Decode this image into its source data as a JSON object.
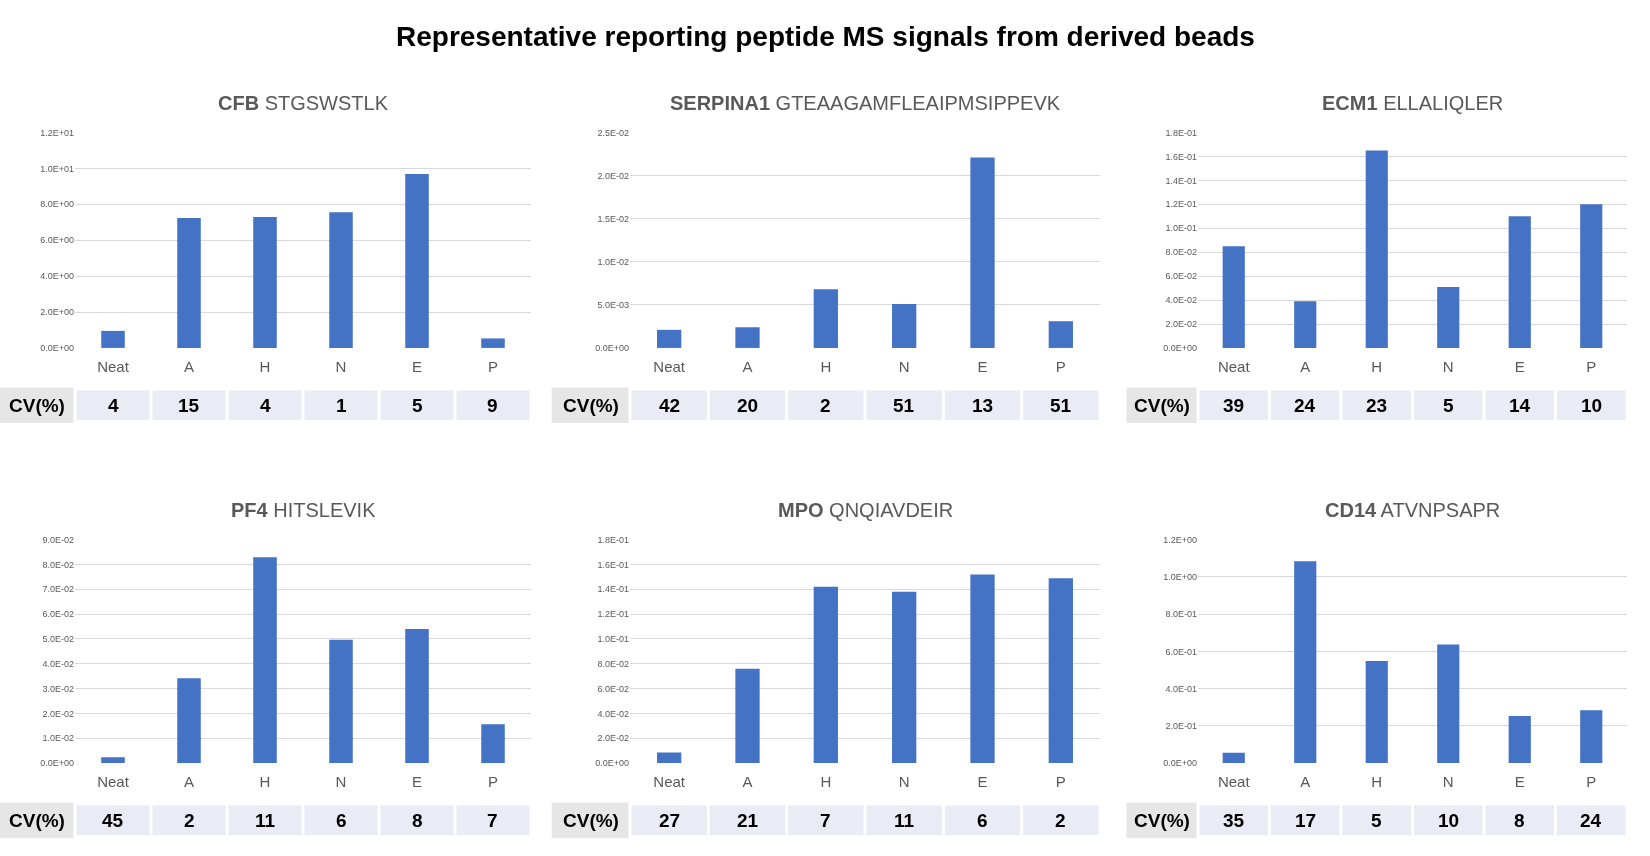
{
  "chart_data": [
    {
      "type": "other",
      "title": "Representative reporting peptide MS signals from derived beads"
    },
    {
      "type": "bar",
      "title": "CFB STGSWSTLK",
      "categories": [
        "Neat",
        "A",
        "H",
        "N",
        "E",
        "P"
      ],
      "values": [
        0.95,
        7.24,
        7.3,
        7.56,
        9.69,
        0.53
      ],
      "color": "#4472c4",
      "ylim": [
        0,
        12
      ],
      "yticks": [
        {
          "value": 0,
          "label": "0.0E+00"
        },
        {
          "value": 2,
          "label": "2.0E+00"
        },
        {
          "value": 4,
          "label": "4.0E+00"
        },
        {
          "value": 6,
          "label": "6.0E+00"
        },
        {
          "value": 8,
          "label": "8.0E+00"
        },
        {
          "value": 10,
          "label": "1.0E+01"
        },
        {
          "value": 12,
          "label": "1.2E+01"
        }
      ],
      "grid": "y",
      "annotations": [
        "CV(%)",
        "4",
        "15",
        "4",
        "1",
        "5",
        "9"
      ]
    },
    {
      "type": "bar",
      "title": "SERPINA1 GTEAAGAMFLEAIPMSIPPEVK",
      "categories": [
        "Neat",
        "A",
        "H",
        "N",
        "E",
        "P"
      ],
      "values": [
        0.0021,
        0.0024,
        0.0068,
        0.0051,
        0.0221,
        0.0031
      ],
      "color": "#4472c4",
      "ylim": [
        0,
        0.025
      ],
      "yticks": [
        {
          "value": 0,
          "label": "0.0E+00"
        },
        {
          "value": 0.005,
          "label": "5.0E-03"
        },
        {
          "value": 0.01,
          "label": "1.0E-02"
        },
        {
          "value": 0.015,
          "label": "1.5E-02"
        },
        {
          "value": 0.02,
          "label": "2.0E-02"
        },
        {
          "value": 0.025,
          "label": "2.5E-02"
        }
      ],
      "grid": "y",
      "annotations": [
        "CV(%)",
        "42",
        "20",
        "2",
        "51",
        "13",
        "51"
      ]
    },
    {
      "type": "bar",
      "title": "ECM1 ELLALIQLER",
      "categories": [
        "Neat",
        "A",
        "H",
        "N",
        "E",
        "P"
      ],
      "values": [
        0.085,
        0.039,
        0.165,
        0.051,
        0.11,
        0.12
      ],
      "color": "#4472c4",
      "ylim": [
        0,
        0.18
      ],
      "yticks": [
        {
          "value": 0,
          "label": "0.0E+00"
        },
        {
          "value": 0.02,
          "label": "2.0E-02"
        },
        {
          "value": 0.04,
          "label": "4.0E-02"
        },
        {
          "value": 0.06,
          "label": "6.0E-02"
        },
        {
          "value": 0.08,
          "label": "8.0E-02"
        },
        {
          "value": 0.1,
          "label": "1.0E-01"
        },
        {
          "value": 0.12,
          "label": "1.2E-01"
        },
        {
          "value": 0.14,
          "label": "1.4E-01"
        },
        {
          "value": 0.16,
          "label": "1.6E-01"
        },
        {
          "value": 0.18,
          "label": "1.8E-01"
        }
      ],
      "grid": "y",
      "annotations": [
        "CV(%)",
        "39",
        "24",
        "23",
        "5",
        "14",
        "10"
      ]
    },
    {
      "type": "bar",
      "title": "PF4 HITSLEVIK",
      "categories": [
        "Neat",
        "A",
        "H",
        "N",
        "E",
        "P"
      ],
      "values": [
        0.0023,
        0.0342,
        0.0829,
        0.0497,
        0.054,
        0.0156
      ],
      "color": "#4472c4",
      "ylim": [
        0,
        0.09
      ],
      "yticks": [
        {
          "value": 0,
          "label": "0.0E+00"
        },
        {
          "value": 0.01,
          "label": "1.0E-02"
        },
        {
          "value": 0.02,
          "label": "2.0E-02"
        },
        {
          "value": 0.03,
          "label": "3.0E-02"
        },
        {
          "value": 0.04,
          "label": "4.0E-02"
        },
        {
          "value": 0.05,
          "label": "5.0E-02"
        },
        {
          "value": 0.06,
          "label": "6.0E-02"
        },
        {
          "value": 0.07,
          "label": "7.0E-02"
        },
        {
          "value": 0.08,
          "label": "8.0E-02"
        },
        {
          "value": 0.09,
          "label": "9.0E-02"
        }
      ],
      "grid": "y",
      "annotations": [
        "CV(%)",
        "45",
        "2",
        "11",
        "6",
        "8",
        "7"
      ]
    },
    {
      "type": "bar",
      "title": "MPO QNQIAVDEIR",
      "categories": [
        "Neat",
        "A",
        "H",
        "N",
        "E",
        "P"
      ],
      "values": [
        0.0085,
        0.076,
        0.142,
        0.138,
        0.152,
        0.149
      ],
      "color": "#4472c4",
      "ylim": [
        0,
        0.18
      ],
      "yticks": [
        {
          "value": 0,
          "label": "0.0E+00"
        },
        {
          "value": 0.02,
          "label": "2.0E-02"
        },
        {
          "value": 0.04,
          "label": "4.0E-02"
        },
        {
          "value": 0.06,
          "label": "6.0E-02"
        },
        {
          "value": 0.08,
          "label": "8.0E-02"
        },
        {
          "value": 0.1,
          "label": "1.0E-01"
        },
        {
          "value": 0.12,
          "label": "1.2E-01"
        },
        {
          "value": 0.14,
          "label": "1.4E-01"
        },
        {
          "value": 0.16,
          "label": "1.6E-01"
        },
        {
          "value": 0.18,
          "label": "1.8E-01"
        }
      ],
      "grid": "y",
      "annotations": [
        "CV(%)",
        "27",
        "21",
        "7",
        "11",
        "6",
        "2"
      ]
    },
    {
      "type": "bar",
      "title": "CD14 ATVNPSAPR",
      "categories": [
        "Neat",
        "A",
        "H",
        "N",
        "E",
        "P"
      ],
      "values": [
        0.055,
        1.084,
        0.548,
        0.637,
        0.253,
        0.284
      ],
      "color": "#4472c4",
      "ylim": [
        0,
        1.2
      ],
      "yticks": [
        {
          "value": 0,
          "label": "0.0E+00"
        },
        {
          "value": 0.2,
          "label": "2.0E-01"
        },
        {
          "value": 0.4,
          "label": "4.0E-01"
        },
        {
          "value": 0.6,
          "label": "6.0E-01"
        },
        {
          "value": 0.8,
          "label": "8.0E-01"
        },
        {
          "value": 1.0,
          "label": "1.0E+00"
        },
        {
          "value": 1.2,
          "label": "1.2E+00"
        }
      ],
      "grid": "y",
      "annotations": [
        "CV(%)",
        "35",
        "17",
        "5",
        "10",
        "8",
        "24"
      ]
    }
  ]
}
